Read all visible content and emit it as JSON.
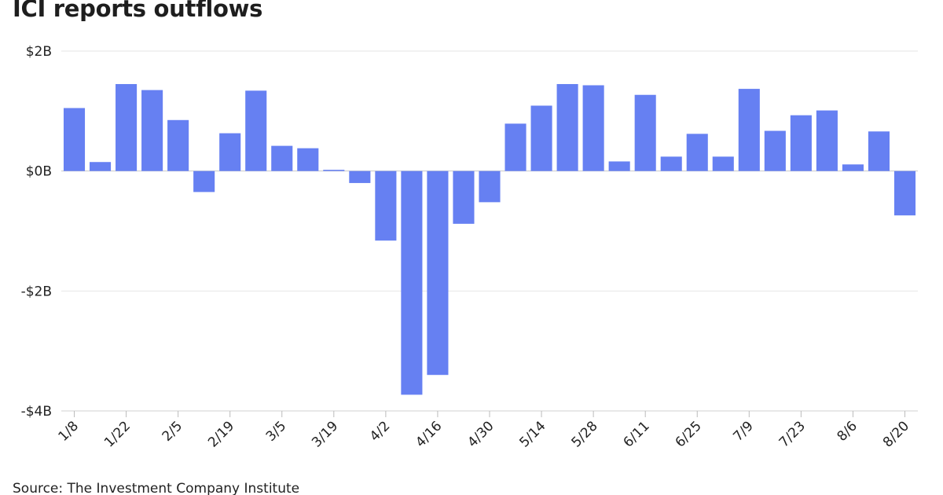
{
  "chart_data": {
    "type": "bar",
    "title": "ICI reports outflows",
    "source": "Source: The Investment Company Institute",
    "xlabel": "",
    "ylabel": "",
    "ylim": [
      -4,
      2
    ],
    "ytick_values": [
      2,
      0,
      -2,
      -4
    ],
    "ytick_labels": [
      "$2B",
      "$0B",
      "-$2B",
      "-$4B"
    ],
    "grid": true,
    "bar_color": "#6680f2",
    "categories": [
      "1/8",
      "1/15",
      "1/22",
      "1/29",
      "2/5",
      "2/12",
      "2/19",
      "2/26",
      "3/5",
      "3/12",
      "3/19",
      "3/26",
      "4/2",
      "4/9",
      "4/16",
      "4/23",
      "4/30",
      "5/7",
      "5/14",
      "5/21",
      "5/28",
      "6/4",
      "6/11",
      "6/18",
      "6/25",
      "7/2",
      "7/9",
      "7/16",
      "7/23",
      "7/30",
      "8/6",
      "8/13",
      "8/20"
    ],
    "xtick_labels": [
      "1/8",
      "1/22",
      "2/5",
      "2/19",
      "3/5",
      "3/19",
      "4/2",
      "4/16",
      "4/30",
      "5/14",
      "5/28",
      "6/11",
      "6/25",
      "7/9",
      "7/23",
      "8/6",
      "8/20"
    ],
    "values": [
      1.05,
      0.15,
      1.45,
      1.35,
      0.85,
      -0.35,
      0.63,
      1.34,
      0.42,
      0.38,
      0.02,
      -0.2,
      -1.16,
      -3.73,
      -3.4,
      -0.88,
      -0.52,
      0.79,
      1.09,
      1.45,
      1.43,
      0.16,
      1.27,
      0.24,
      0.62,
      0.24,
      1.37,
      0.67,
      0.93,
      1.01,
      0.11,
      0.66,
      -0.74
    ]
  }
}
